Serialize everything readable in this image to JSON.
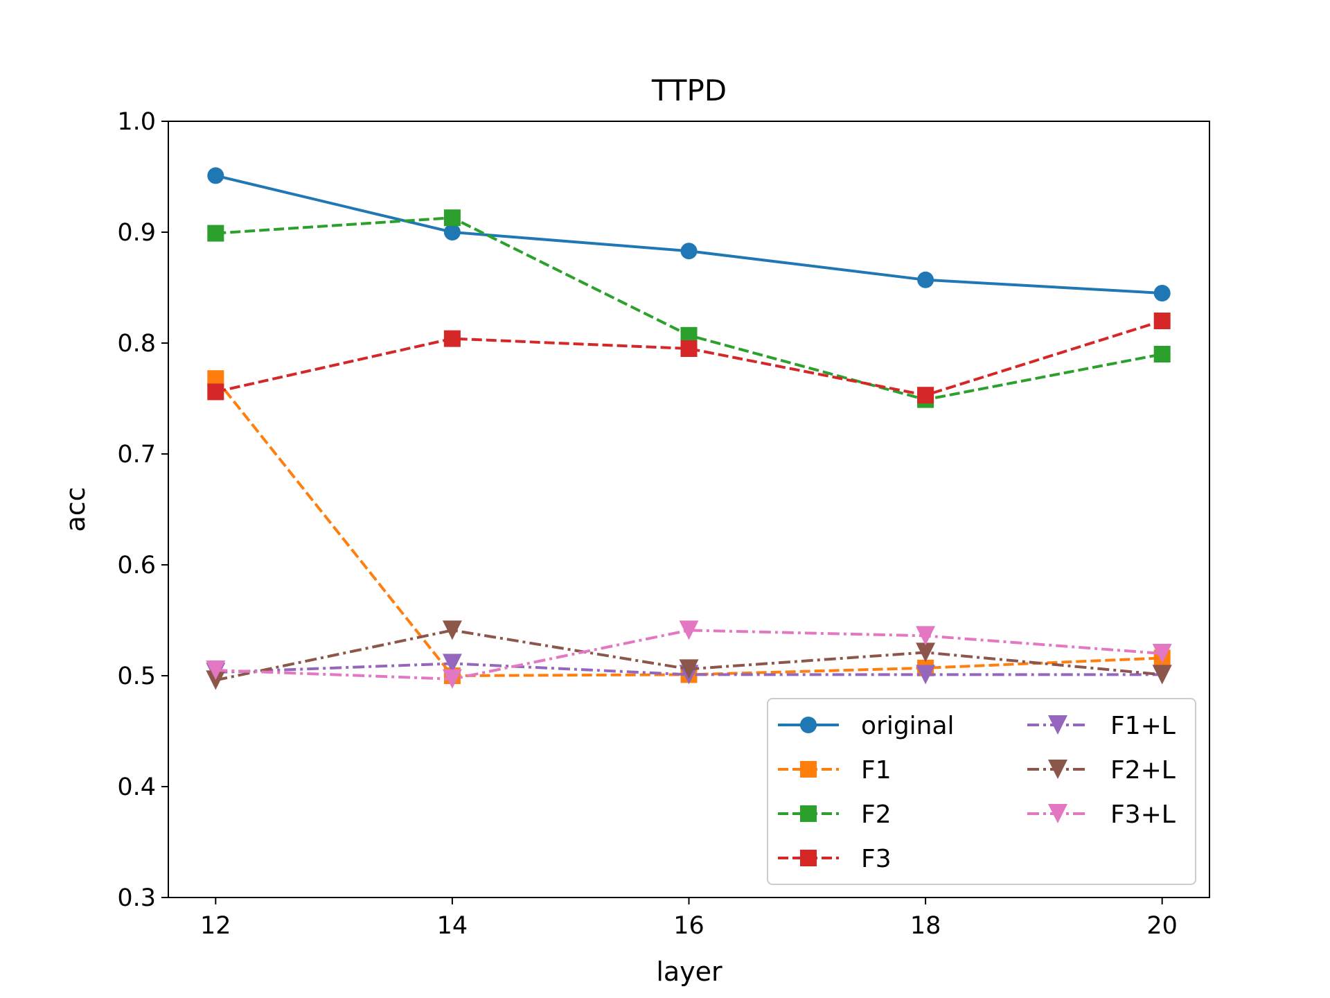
{
  "chart_data": {
    "type": "line",
    "title": "TTPD",
    "xlabel": "layer",
    "ylabel": "acc",
    "x": [
      12,
      14,
      16,
      18,
      20
    ],
    "xticks": [
      "12",
      "14",
      "16",
      "18",
      "20"
    ],
    "xlim": [
      11.6,
      20.4
    ],
    "ylim": [
      0.3,
      1.0
    ],
    "yticks": [
      "0.3",
      "0.4",
      "0.5",
      "0.6",
      "0.7",
      "0.8",
      "0.9",
      "1.0"
    ],
    "grid": false,
    "legend": {
      "position": "lower-right",
      "columns": 2
    },
    "series": [
      {
        "name": "original",
        "values": [
          0.951,
          0.9,
          0.883,
          0.857,
          0.845
        ],
        "color": "#1f77b4",
        "linestyle": "solid",
        "marker": "circle"
      },
      {
        "name": "F1",
        "values": [
          0.768,
          0.5,
          0.501,
          0.507,
          0.516
        ],
        "color": "#ff7f0e",
        "linestyle": "dashed",
        "marker": "square"
      },
      {
        "name": "F2",
        "values": [
          0.899,
          0.913,
          0.807,
          0.749,
          0.79
        ],
        "color": "#2ca02c",
        "linestyle": "dashed",
        "marker": "square"
      },
      {
        "name": "F3",
        "values": [
          0.756,
          0.804,
          0.795,
          0.753,
          0.82
        ],
        "color": "#d62728",
        "linestyle": "dashed",
        "marker": "square"
      },
      {
        "name": "F1+L",
        "values": [
          0.503,
          0.511,
          0.501,
          0.501,
          0.501
        ],
        "color": "#9467bd",
        "linestyle": "dashdot",
        "marker": "triangle-down"
      },
      {
        "name": "F2+L",
        "values": [
          0.496,
          0.541,
          0.506,
          0.521,
          0.501
        ],
        "color": "#8c564b",
        "linestyle": "dashdot",
        "marker": "triangle-down"
      },
      {
        "name": "F3+L",
        "values": [
          0.505,
          0.497,
          0.541,
          0.536,
          0.52
        ],
        "color": "#e377c2",
        "linestyle": "dashdot",
        "marker": "triangle-down"
      }
    ]
  }
}
